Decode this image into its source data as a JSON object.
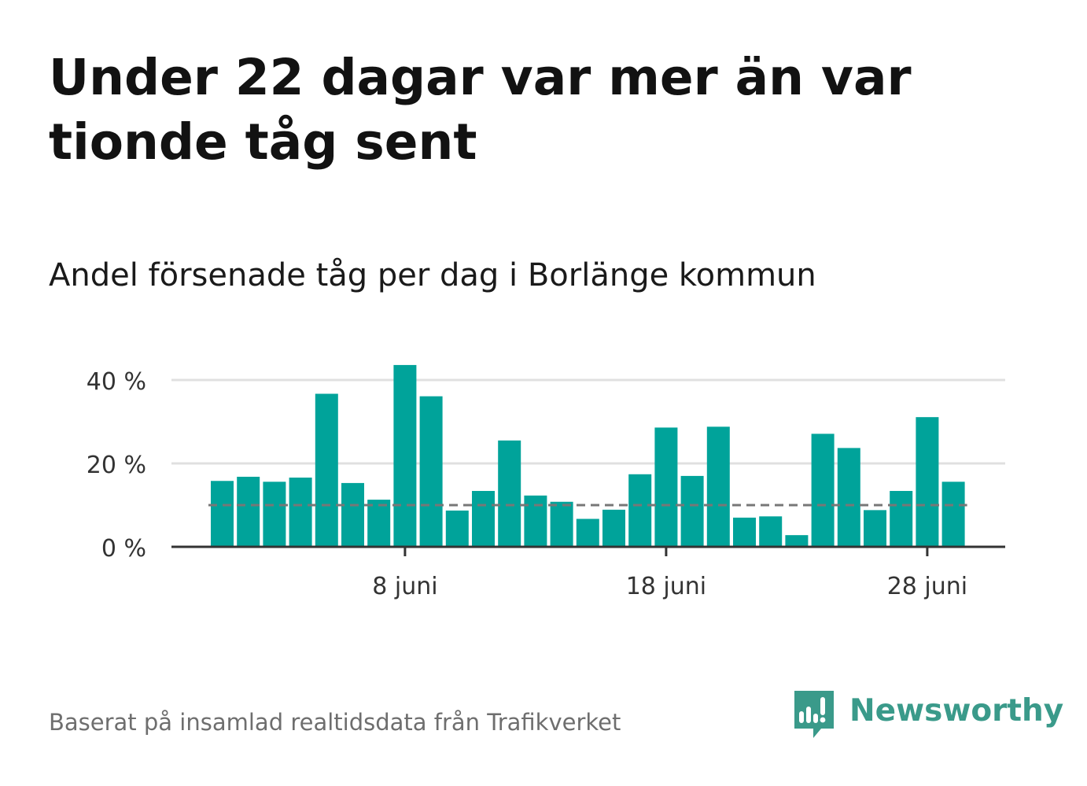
{
  "title": "Under 22 dagar var mer än var tionde tåg sent",
  "subtitle": "Andel försenade tåg per dag i Borlänge kommun",
  "source": "Baserat på insamlad realtidsdata från Trafikverket",
  "brand": {
    "name": "Newsworthy",
    "icon": "newsworthy-logo-icon"
  },
  "colors": {
    "bar": "#00a39a",
    "grid": "#e0e0e0",
    "axis": "#333333",
    "reference": "#777777",
    "brand": "#3a9a8a"
  },
  "chart_data": {
    "type": "bar",
    "title": "Andel försenade tåg per dag i Borlänge kommun",
    "xlabel": "",
    "ylabel": "",
    "x": [
      "2024-06-01",
      "2024-06-02",
      "2024-06-03",
      "2024-06-04",
      "2024-06-05",
      "2024-06-06",
      "2024-06-07",
      "2024-06-08",
      "2024-06-09",
      "2024-06-10",
      "2024-06-11",
      "2024-06-12",
      "2024-06-13",
      "2024-06-14",
      "2024-06-15",
      "2024-06-16",
      "2024-06-17",
      "2024-06-18",
      "2024-06-19",
      "2024-06-20",
      "2024-06-21",
      "2024-06-22",
      "2024-06-23",
      "2024-06-24",
      "2024-06-25",
      "2024-06-26",
      "2024-06-27",
      "2024-06-28",
      "2024-06-29"
    ],
    "values": [
      15.8,
      16.8,
      15.6,
      16.6,
      36.7,
      15.3,
      11.3,
      43.6,
      36.1,
      8.7,
      13.4,
      25.5,
      12.3,
      10.8,
      6.7,
      8.9,
      17.4,
      28.6,
      17.0,
      28.8,
      7.0,
      7.3,
      2.8,
      27.1,
      23.7,
      8.8,
      13.4,
      31.1,
      15.6
    ],
    "reference_line": 10,
    "ylim": [
      0,
      45
    ],
    "yticks": [
      0,
      20,
      40
    ],
    "ytick_labels": [
      "0 %",
      "20 %",
      "40 %"
    ],
    "xticks": [
      "2024-06-08",
      "2024-06-18",
      "2024-06-28"
    ],
    "xtick_labels": [
      "8 juni",
      "18 juni",
      "28 juni"
    ],
    "grid": true,
    "legend": "none"
  }
}
